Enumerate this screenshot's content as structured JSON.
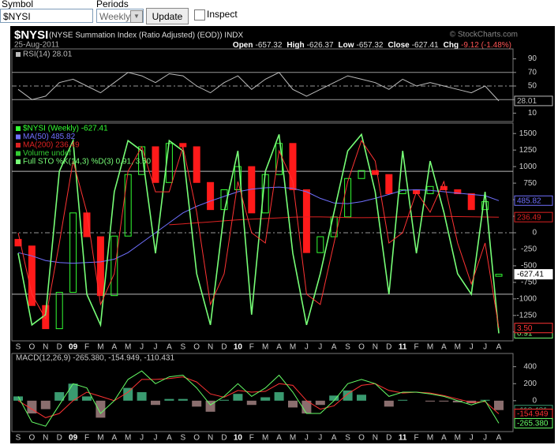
{
  "toolbar": {
    "symbol_label": "Symbol",
    "periods_label": "Periods",
    "symbol": "$NYSI",
    "period": "Weekly",
    "button": "Update",
    "inspect": "Inspect"
  },
  "header": {
    "symbol": "$NYSI",
    "description": "(NYSE Summation Index (Ratio Adjusted) (EOD)) INDX",
    "credit": "© StockCharts.com",
    "date": "25-Aug-2011",
    "quote": [
      {
        "label": "Open",
        "value": "-657.32"
      },
      {
        "label": "High",
        "value": "-626.37"
      },
      {
        "label": "Low",
        "value": "-657.32"
      },
      {
        "label": "Close",
        "value": "-627.41"
      },
      {
        "label": "Chg",
        "value": "-9.12 (-1.48%)"
      }
    ]
  },
  "chart_data": [
    {
      "type": "line",
      "ylim": [
        0,
        100
      ],
      "yticks": [
        90,
        70,
        50,
        30,
        10
      ],
      "reference_lines": [
        70,
        50,
        30
      ],
      "series": [
        {
          "name": "RSI(14) 28.01",
          "color": "#bbbbbb",
          "values": [
            45,
            30,
            35,
            55,
            60,
            50,
            40,
            55,
            70,
            65,
            55,
            68,
            65,
            50,
            40,
            55,
            65,
            45,
            60,
            70,
            45,
            35,
            45,
            55,
            65,
            60,
            55,
            45,
            60,
            50,
            55,
            50,
            45,
            40,
            50,
            28.01
          ]
        }
      ]
    },
    {
      "type": "candlestick",
      "categories": [
        "S",
        "O",
        "N",
        "D",
        "09",
        "F",
        "M",
        "A",
        "M",
        "J",
        "J",
        "A",
        "S",
        "O",
        "N",
        "D",
        "10",
        "F",
        "M",
        "A",
        "M",
        "J",
        "J",
        "A",
        "S",
        "O",
        "N",
        "D",
        "11",
        "F",
        "M",
        "A",
        "M",
        "J",
        "J",
        "A"
      ],
      "ylim": [
        -1610,
        1610
      ],
      "yticks": [
        1500,
        1250,
        1000,
        750,
        500,
        250,
        0,
        -250,
        -500,
        -750,
        -1000,
        -1250,
        -1500
      ],
      "y2lim": [
        -2,
        102
      ],
      "reference_lines": [
        0
      ],
      "y2_reference_lines": [
        80,
        20
      ],
      "candles": {
        "name": "$NYSI (Weekly) -627.41",
        "up_color": "#33ff33",
        "down_color": "#ff1a1a",
        "open": [
          -100,
          -200,
          -1100,
          -1450,
          -900,
          300,
          -60,
          -950,
          -50,
          880,
          1300,
          760,
          1350,
          1300,
          760,
          350,
          650,
          1000,
          300,
          880,
          1350,
          650,
          -300,
          -60,
          240,
          820,
          940,
          880,
          590,
          650,
          590,
          700,
          650,
          590,
          350,
          -657.32
        ],
        "close": [
          -200,
          -1100,
          -1450,
          -900,
          300,
          -60,
          -950,
          -50,
          880,
          1300,
          760,
          1350,
          1300,
          760,
          350,
          650,
          1000,
          300,
          880,
          1350,
          650,
          -300,
          -60,
          240,
          820,
          940,
          880,
          590,
          650,
          590,
          700,
          650,
          590,
          350,
          470,
          -627.41
        ]
      },
      "series": [
        {
          "name": "MA(50) 485.82",
          "color": "#7070ff",
          "values": [
            -300,
            -350,
            -420,
            -450,
            -460,
            -450,
            -440,
            -400,
            -300,
            -150,
            0,
            150,
            300,
            400,
            480,
            550,
            620,
            660,
            680,
            690,
            670,
            620,
            520,
            450,
            440,
            470,
            520,
            580,
            640,
            650,
            640,
            620,
            600,
            580,
            560,
            485.82
          ]
        },
        {
          "name": "MA(200) 236.49",
          "color": "#dd2222",
          "values": [
            null,
            null,
            null,
            null,
            null,
            null,
            null,
            null,
            null,
            null,
            null,
            120,
            135,
            150,
            165,
            180,
            195,
            205,
            215,
            225,
            235,
            240,
            240,
            235,
            230,
            228,
            230,
            235,
            240,
            245,
            248,
            248,
            245,
            242,
            239,
            236.49
          ]
        },
        {
          "name": "Volume undef",
          "color": "#33cc33"
        },
        {
          "name": "Full STO %K(14,3) %D(3) 0.91, 3.50",
          "axis": "y2",
          "color": "#77ff77",
          "values": [
            40,
            5,
            10,
            80,
            95,
            20,
            5,
            70,
            95,
            90,
            40,
            95,
            90,
            30,
            5,
            60,
            90,
            10,
            80,
            98,
            40,
            5,
            30,
            60,
            90,
            98,
            70,
            20,
            90,
            40,
            85,
            60,
            30,
            20,
            70,
            0.91
          ],
          "signal_color": "#ff3333",
          "signal": [
            50,
            20,
            8,
            45,
            85,
            60,
            15,
            30,
            80,
            92,
            70,
            70,
            92,
            60,
            15,
            30,
            75,
            50,
            45,
            90,
            75,
            20,
            15,
            45,
            75,
            95,
            85,
            45,
            50,
            70,
            60,
            75,
            45,
            25,
            45,
            3.5
          ],
          "signal_last_label": "3.50"
        }
      ]
    },
    {
      "type": "line",
      "legend": "MACD(12,26,9) -265.380, -154.949, -110.431",
      "ylim": [
        -345,
        518
      ],
      "yticks": [
        400,
        200,
        0
      ],
      "series": [
        {
          "style": "bar",
          "color": "#3a9a70",
          "negative_color": "#8a6e6e",
          "values": [
            50,
            -150,
            -100,
            100,
            200,
            50,
            -200,
            0,
            150,
            100,
            -50,
            20,
            20,
            -70,
            -130,
            10,
            80,
            -50,
            40,
            100,
            -80,
            -150,
            -50,
            60,
            120,
            70,
            0,
            -70,
            10,
            0,
            -10,
            -10,
            -20,
            -30,
            10,
            -110.431
          ],
          "last_label": "-110.431"
        },
        {
          "color": "#ff3333",
          "values": [
            0,
            -100,
            -200,
            -150,
            0,
            100,
            50,
            0,
            100,
            250,
            250,
            260,
            280,
            220,
            80,
            40,
            120,
            100,
            110,
            200,
            180,
            0,
            -100,
            -60,
            80,
            180,
            200,
            120,
            90,
            100,
            90,
            60,
            20,
            -20,
            -10,
            -154.949
          ],
          "last_label": "-154.949"
        },
        {
          "color": "#66ff66",
          "values": [
            50,
            -250,
            -300,
            -50,
            200,
            150,
            -150,
            0,
            250,
            350,
            200,
            280,
            300,
            150,
            -50,
            50,
            200,
            50,
            150,
            300,
            100,
            -150,
            -150,
            0,
            200,
            250,
            200,
            50,
            100,
            100,
            80,
            50,
            0,
            -50,
            0,
            -265.38
          ],
          "last_label": "-265.380"
        }
      ]
    }
  ]
}
